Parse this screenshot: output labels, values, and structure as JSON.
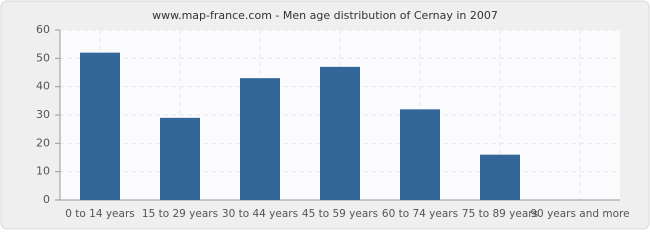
{
  "chart_data": {
    "type": "bar",
    "title": "www.map-france.com - Men age distribution of Cernay in 2007",
    "categories": [
      "0 to 14 years",
      "15 to 29 years",
      "30 to 44 years",
      "45 to 59 years",
      "60 to 74 years",
      "75 to 89 years",
      "90 years and more"
    ],
    "values": [
      52,
      29,
      43,
      47,
      32,
      16,
      0
    ],
    "color": "#336699",
    "ylim": [
      0,
      60
    ],
    "yticks": [
      0,
      10,
      20,
      30,
      40,
      50,
      60
    ],
    "grid": true
  }
}
